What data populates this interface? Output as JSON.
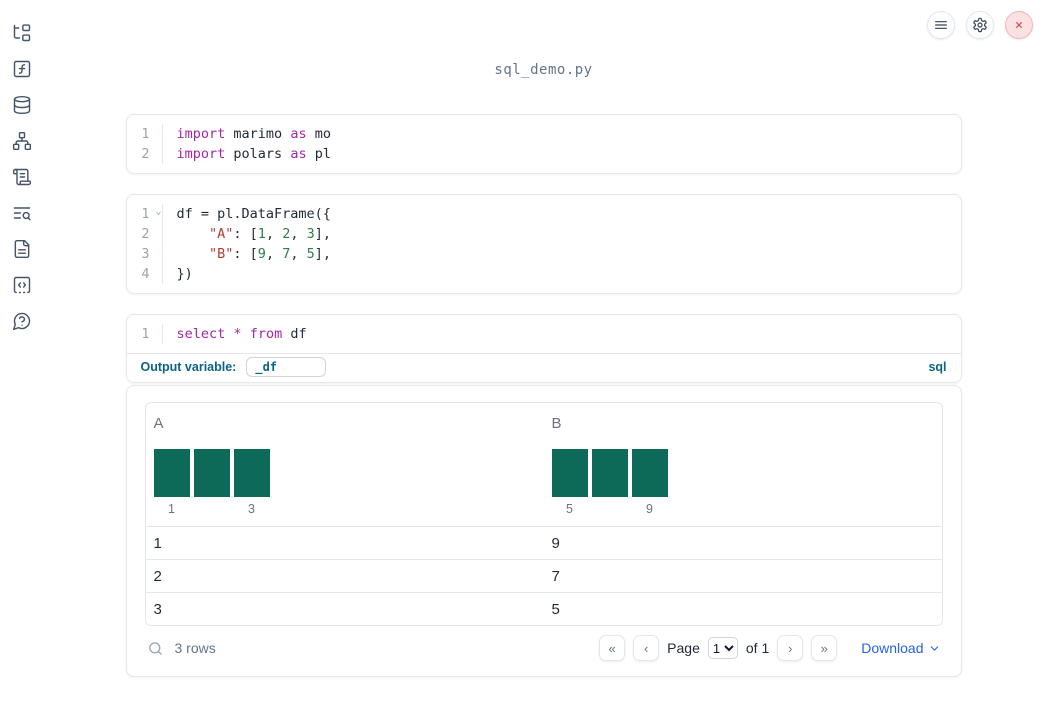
{
  "window": {
    "title": "sql_demo.py"
  },
  "topbar": {
    "buttons": [
      {
        "icon": "menu-icon"
      },
      {
        "icon": "settings-gear-icon"
      },
      {
        "icon": "shutdown-close-icon"
      }
    ]
  },
  "sidebar": {
    "items": [
      {
        "icon": "file-explorer-tree-icon"
      },
      {
        "icon": "variables-function-icon"
      },
      {
        "icon": "datasources-database-icon"
      },
      {
        "icon": "dependency-graph-icon"
      },
      {
        "icon": "logs-scroll-icon"
      },
      {
        "icon": "tracing-search-icon"
      },
      {
        "icon": "documentation-file-icon"
      },
      {
        "icon": "snippets-code-icon"
      },
      {
        "icon": "help-chat-icon"
      }
    ]
  },
  "cells": [
    {
      "id": "imports",
      "lines": [
        {
          "n": "1",
          "tokens": [
            [
              "kw",
              "import"
            ],
            [
              "pl",
              " marimo "
            ],
            [
              "kw",
              "as"
            ],
            [
              "pl",
              " mo"
            ]
          ]
        },
        {
          "n": "2",
          "tokens": [
            [
              "kw",
              "import"
            ],
            [
              "pl",
              " polars "
            ],
            [
              "kw",
              "as"
            ],
            [
              "pl",
              " pl"
            ]
          ]
        }
      ]
    },
    {
      "id": "dataframe",
      "lines": [
        {
          "n": "1",
          "fold": true,
          "tokens": [
            [
              "pl",
              "df = pl.DataFrame({"
            ]
          ]
        },
        {
          "n": "2",
          "tokens": [
            [
              "pl",
              "    "
            ],
            [
              "str",
              "\"A\""
            ],
            [
              "pl",
              ": ["
            ],
            [
              "num",
              "1"
            ],
            [
              "pl",
              ", "
            ],
            [
              "num",
              "2"
            ],
            [
              "pl",
              ", "
            ],
            [
              "num",
              "3"
            ],
            [
              "pl",
              "],"
            ]
          ]
        },
        {
          "n": "3",
          "tokens": [
            [
              "pl",
              "    "
            ],
            [
              "str",
              "\"B\""
            ],
            [
              "pl",
              ": ["
            ],
            [
              "num",
              "9"
            ],
            [
              "pl",
              ", "
            ],
            [
              "num",
              "7"
            ],
            [
              "pl",
              ", "
            ],
            [
              "num",
              "5"
            ],
            [
              "pl",
              "],"
            ]
          ]
        },
        {
          "n": "4",
          "tokens": [
            [
              "pl",
              "})"
            ]
          ]
        }
      ]
    },
    {
      "id": "sql",
      "lines": [
        {
          "n": "1",
          "tokens": [
            [
              "kw",
              "select"
            ],
            [
              "pl",
              " "
            ],
            [
              "kw",
              "*"
            ],
            [
              "pl",
              " "
            ],
            [
              "kw",
              "from"
            ],
            [
              "pl",
              " df"
            ]
          ]
        }
      ]
    }
  ],
  "sql_footer": {
    "output_variable_label": "Output variable:",
    "output_variable_value": "_df",
    "language_label": "sql"
  },
  "table": {
    "columns": [
      {
        "name": "A",
        "hist": {
          "type": "bar",
          "bars": [
            1,
            1,
            1
          ],
          "min_label": "1",
          "max_label": "3"
        }
      },
      {
        "name": "B",
        "hist": {
          "type": "bar",
          "bars": [
            1,
            1,
            1
          ],
          "min_label": "5",
          "max_label": "9"
        }
      }
    ],
    "rows": [
      [
        "1",
        "9"
      ],
      [
        "2",
        "7"
      ],
      [
        "3",
        "5"
      ]
    ],
    "row_count": "3 rows",
    "pagination": {
      "first_icon": "chevrons-left-icon",
      "prev_icon": "chevron-left-icon",
      "page_label": "Page",
      "page_value": "1",
      "of_label": "of 1",
      "next_icon": "chevron-right-icon",
      "last_icon": "chevrons-right-icon"
    },
    "download_label": "Download"
  },
  "colors": {
    "histogram_bar": "#0d6a58",
    "accent_blue": "#2563eb",
    "sql_blue": "#0c6286",
    "keyword_purple": "#a626a4",
    "string_red": "#b03d33",
    "number_green": "#2e7d46",
    "close_button_red": "#dd4a4a"
  }
}
